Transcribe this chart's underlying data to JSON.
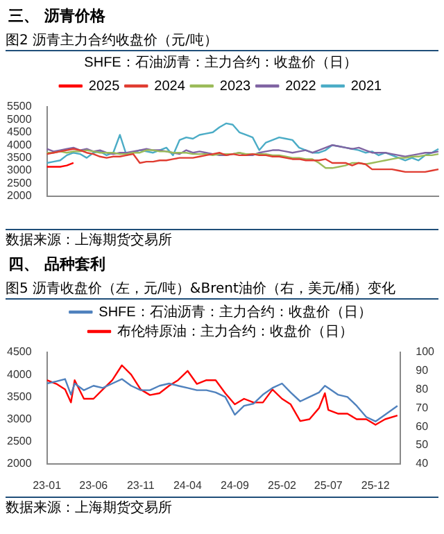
{
  "chart_data": [
    {
      "type": "line",
      "title": "图2 沥青主力合约收盘价（元/吨）",
      "subtitle": "SHFE：石油沥青：主力合约：收盘价（日）",
      "annotations": [
        "三、 沥青价格",
        "数据来源：上海期货交易所"
      ],
      "categories": [
        null,
        null,
        null,
        null,
        null,
        null,
        null,
        null,
        null,
        null,
        null,
        null,
        null,
        null,
        null,
        null,
        null,
        null,
        null,
        null,
        null,
        null,
        null,
        null,
        null,
        null,
        null,
        null,
        null,
        null,
        null,
        null,
        null,
        null,
        null,
        null,
        null,
        null,
        null,
        null,
        null,
        null,
        null,
        null,
        null,
        null,
        null,
        null,
        null,
        null,
        null,
        null,
        null,
        null,
        null,
        null,
        null,
        null,
        null,
        null
      ],
      "ylim": [
        2000,
        5500
      ],
      "yticks": [
        2000,
        2500,
        3000,
        3500,
        4000,
        4500,
        5000,
        5500
      ],
      "grid": false,
      "legend": "top",
      "marker": "none",
      "series": [
        {
          "name": "2025",
          "color": "#ff0000",
          "values": [
            3150,
            3150,
            3150,
            3200,
            3300,
            null,
            null,
            null,
            null,
            null,
            null,
            null,
            null,
            null,
            null,
            null,
            null,
            null,
            null,
            null,
            null,
            null,
            null,
            null,
            null,
            null,
            null,
            null,
            null,
            null,
            null,
            null,
            null,
            null,
            null,
            null,
            null,
            null,
            null,
            null,
            null,
            null,
            null,
            null,
            null,
            null,
            null,
            null,
            null,
            null,
            null,
            null,
            null,
            null,
            null,
            null,
            null,
            null,
            null,
            null
          ]
        },
        {
          "name": "2024",
          "color": "#e03c31",
          "values": [
            3650,
            3700,
            3750,
            3800,
            3850,
            3800,
            3700,
            3650,
            3550,
            3500,
            3550,
            3550,
            3600,
            3650,
            3300,
            3350,
            3350,
            3400,
            3400,
            3450,
            3500,
            3500,
            3500,
            3550,
            3600,
            3650,
            3700,
            3600,
            3650,
            3600,
            3600,
            3650,
            3600,
            3600,
            3550,
            3550,
            3500,
            3450,
            3450,
            3400,
            3400,
            3400,
            3450,
            3300,
            3300,
            3300,
            3200,
            3300,
            3250,
            3050,
            3050,
            3050,
            3050,
            3000,
            2950,
            2950,
            2950,
            2950,
            3000,
            3050
          ]
        },
        {
          "name": "2023",
          "color": "#9bbb59",
          "values": [
            3700,
            3700,
            3750,
            3700,
            3750,
            3750,
            3800,
            3750,
            3700,
            3700,
            3700,
            3650,
            3650,
            3700,
            3700,
            3800,
            3800,
            3750,
            3750,
            3700,
            3700,
            3700,
            3650,
            3650,
            3650,
            3600,
            3650,
            3650,
            3650,
            3700,
            3650,
            3650,
            3650,
            3650,
            3600,
            3600,
            3550,
            3500,
            3500,
            3450,
            3450,
            3300,
            3100,
            3100,
            3150,
            3200,
            3300,
            3300,
            3250,
            3300,
            3350,
            3400,
            3450,
            3500,
            3500,
            3550,
            3550,
            3600,
            3600,
            3650
          ]
        },
        {
          "name": "2022",
          "color": "#8064a2",
          "values": [
            3850,
            3750,
            3800,
            3850,
            3900,
            3800,
            3850,
            3750,
            3800,
            3700,
            3650,
            3700,
            3700,
            3750,
            3800,
            3850,
            3800,
            3800,
            3750,
            3700,
            3650,
            3800,
            3700,
            3750,
            3700,
            3650,
            3600,
            3600,
            3650,
            3700,
            3600,
            3600,
            3700,
            3750,
            3800,
            3800,
            3750,
            3700,
            3750,
            3800,
            3700,
            3800,
            3900,
            4000,
            3950,
            3900,
            3850,
            3900,
            3800,
            3700,
            3700,
            3700,
            3650,
            3600,
            3550,
            3600,
            3650,
            3700,
            3700,
            3750
          ]
        },
        {
          "name": "2021",
          "color": "#4bacc6",
          "values": [
            3300,
            3350,
            3400,
            3600,
            3700,
            3650,
            3500,
            3700,
            3750,
            3600,
            3700,
            4400,
            3600,
            3700,
            3800,
            3750,
            3700,
            3800,
            3900,
            3600,
            4200,
            4300,
            4250,
            4400,
            4450,
            4500,
            4700,
            4850,
            4800,
            4500,
            4400,
            4300,
            3800,
            4100,
            4200,
            4300,
            4250,
            4200,
            3900,
            3800,
            3700,
            3700,
            3800,
            4000,
            3950,
            3900,
            3850,
            3800,
            3700,
            3750,
            3600,
            3700,
            3600,
            3500,
            3400,
            3500,
            3400,
            3600,
            3700,
            3850
          ]
        }
      ]
    },
    {
      "type": "line",
      "title": "图5 沥青收盘价（左，元/吨）&Brent油价（右，美元/桶）变化",
      "annotations": [
        "四、 品种套利",
        "数据来源：上海期货交易所"
      ],
      "x": [
        "2023-01",
        "2023-02",
        "2023-03",
        "2023-03-20",
        "2023-04",
        "2023-05",
        "2023-06",
        "2023-07",
        "2023-08",
        "2023-09",
        "2023-10",
        "2023-11",
        "2023-12",
        "2024-01",
        "2024-02",
        "2024-03",
        "2024-04",
        "2024-05",
        "2024-06",
        "2024-07",
        "2024-08",
        "2024-09",
        "2024-10",
        "2024-11",
        "2024-12",
        "2025-01",
        "2025-02",
        "2025-03",
        "2025-04",
        "2025-05",
        "2025-06",
        "2025-06-20",
        "2025-07",
        "2025-08",
        "2025-09",
        "2025-10",
        "2025-11",
        "2025-12",
        "2026-01",
        "2026-02-10"
      ],
      "xlim": [
        "2023-01",
        "2026-02-20"
      ],
      "xticks": [
        {
          "value": "2023-01",
          "label": "23-01"
        },
        {
          "value": "2023-06",
          "label": "23-06"
        },
        {
          "value": "2023-11",
          "label": "23-11"
        },
        {
          "value": "2024-04",
          "label": "24-04"
        },
        {
          "value": "2024-09",
          "label": "24-09"
        },
        {
          "value": "2025-02",
          "label": "25-02"
        },
        {
          "value": "2025-07",
          "label": "25-07"
        },
        {
          "value": "2025-12",
          "label": "25-12"
        }
      ],
      "ylim": [
        2000,
        4500
      ],
      "yticks": [
        2000,
        2500,
        3000,
        3500,
        4000,
        4500
      ],
      "y2lim": [
        40,
        100
      ],
      "y2ticks": [
        40,
        50,
        60,
        70,
        80,
        90,
        100
      ],
      "grid": false,
      "legend": "top",
      "marker": "none",
      "series": [
        {
          "name": "SHFE：石油沥青：主力合约：收盘价（日）",
          "color": "#4f81bd",
          "values": [
            3800,
            3850,
            3900,
            3550,
            3800,
            3650,
            3750,
            3700,
            3800,
            3900,
            3750,
            3650,
            3650,
            3750,
            3800,
            3750,
            3700,
            3650,
            3650,
            3600,
            3500,
            3100,
            3300,
            3350,
            3550,
            3700,
            3800,
            3600,
            3400,
            3500,
            3600,
            3750,
            3700,
            3550,
            3500,
            3300,
            3050,
            2950,
            3100,
            3300
          ]
        },
        {
          "name": "布伦特原油：主力合约：收盘价（日）",
          "color": "#ff0000",
          "axis": "y2",
          "values": [
            85,
            83,
            80,
            73,
            85,
            75,
            75,
            80,
            85,
            93,
            88,
            80,
            77,
            78,
            82,
            85,
            90,
            83,
            85,
            85,
            78,
            72,
            75,
            73,
            73,
            80,
            75,
            72,
            63,
            64,
            70,
            78,
            69,
            67,
            67,
            64,
            64,
            61,
            64,
            66
          ]
        }
      ]
    }
  ]
}
